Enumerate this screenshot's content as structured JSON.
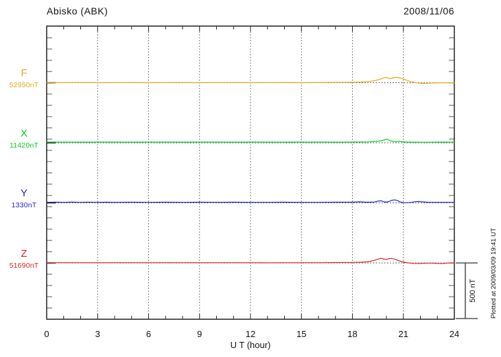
{
  "header": {
    "title": "Abisko (ABK)",
    "date": "2008/11/06"
  },
  "axis": {
    "xlabel": "U T (hour)",
    "x_ticks": [
      0,
      3,
      6,
      9,
      12,
      15,
      18,
      21,
      24
    ]
  },
  "scalebar": {
    "label": "500 nT",
    "value_nT": 500
  },
  "footer": {
    "plotted_at": "Plotted at 2009/03/09 19:41 UT"
  },
  "chart_data": {
    "type": "line",
    "title": "Abisko (ABK)",
    "date": "2008/11/06",
    "xlabel": "U T (hour)",
    "x_range": [
      0,
      24
    ],
    "x_ticks": [
      0,
      3,
      6,
      9,
      12,
      15,
      18,
      21,
      24
    ],
    "grid": "vertical dotted lines every 3 hours; dotted zero baseline per trace; minor ticks every hour (x) and every 100 nT (y)",
    "legend_position": "left margin, one colored label per trace",
    "scale_bar_nT": 500,
    "y_units": "nT deviation from baseline value",
    "plotted_at": "Plotted at 2009/03/09 19:41 UT",
    "series": [
      {
        "name": "F",
        "baseline_label": "52950nT",
        "baseline_nT": 52950,
        "color": "#E9A511",
        "points": [
          [
            0,
            1
          ],
          [
            1,
            1
          ],
          [
            2,
            2
          ],
          [
            3,
            1
          ],
          [
            4,
            1
          ],
          [
            5,
            2
          ],
          [
            6,
            1
          ],
          [
            7,
            1
          ],
          [
            8,
            2
          ],
          [
            9,
            1
          ],
          [
            10,
            1
          ],
          [
            11,
            2
          ],
          [
            12,
            1
          ],
          [
            13,
            1
          ],
          [
            14,
            2
          ],
          [
            15,
            1
          ],
          [
            16,
            2
          ],
          [
            17,
            3
          ],
          [
            18,
            4
          ],
          [
            18.5,
            6
          ],
          [
            19,
            11
          ],
          [
            19.3,
            18
          ],
          [
            19.6,
            30
          ],
          [
            19.8,
            40
          ],
          [
            19.95,
            48
          ],
          [
            20.1,
            40
          ],
          [
            20.25,
            37
          ],
          [
            20.45,
            46
          ],
          [
            20.6,
            48
          ],
          [
            20.8,
            43
          ],
          [
            21,
            34
          ],
          [
            21.2,
            22
          ],
          [
            21.4,
            11
          ],
          [
            21.6,
            4
          ],
          [
            21.8,
            -2
          ],
          [
            22.1,
            -6
          ],
          [
            22.4,
            -5
          ],
          [
            22.7,
            -2
          ],
          [
            23,
            -1
          ],
          [
            23.5,
            0
          ],
          [
            24,
            0
          ]
        ]
      },
      {
        "name": "X",
        "baseline_label": "11420nT",
        "baseline_nT": 11420,
        "color": "#00CC22",
        "points": [
          [
            0,
            6
          ],
          [
            1,
            6
          ],
          [
            2,
            6
          ],
          [
            3,
            6
          ],
          [
            4,
            6
          ],
          [
            5,
            6
          ],
          [
            6,
            6
          ],
          [
            7,
            6
          ],
          [
            8,
            6
          ],
          [
            9,
            6
          ],
          [
            10,
            6
          ],
          [
            11,
            6
          ],
          [
            12,
            6
          ],
          [
            13,
            6
          ],
          [
            14,
            6
          ],
          [
            15,
            6
          ],
          [
            16,
            6
          ],
          [
            17,
            6
          ],
          [
            18,
            7
          ],
          [
            18.5,
            7
          ],
          [
            19,
            8
          ],
          [
            19.4,
            12
          ],
          [
            19.7,
            18
          ],
          [
            19.9,
            27
          ],
          [
            20.05,
            31
          ],
          [
            20.2,
            20
          ],
          [
            20.4,
            12
          ],
          [
            20.6,
            10
          ],
          [
            20.75,
            14
          ],
          [
            20.9,
            9
          ],
          [
            21.2,
            7
          ],
          [
            21.5,
            6
          ],
          [
            22,
            5
          ],
          [
            22.5,
            5
          ],
          [
            23,
            6
          ],
          [
            23.5,
            6
          ],
          [
            24,
            6
          ]
        ]
      },
      {
        "name": "Y",
        "baseline_label": "1330nT",
        "baseline_nT": 1330,
        "color": "#2222CC",
        "points": [
          [
            0,
            5
          ],
          [
            0.5,
            6
          ],
          [
            1,
            5
          ],
          [
            1.5,
            7
          ],
          [
            2,
            5
          ],
          [
            2.5,
            6
          ],
          [
            3,
            5
          ],
          [
            3.5,
            6
          ],
          [
            4,
            5
          ],
          [
            5,
            6
          ],
          [
            6,
            5
          ],
          [
            7,
            6
          ],
          [
            8,
            5
          ],
          [
            9,
            6
          ],
          [
            10,
            5
          ],
          [
            11,
            6
          ],
          [
            12,
            5
          ],
          [
            13,
            5
          ],
          [
            14,
            6
          ],
          [
            15,
            5
          ],
          [
            16,
            5
          ],
          [
            17,
            6
          ],
          [
            18,
            6
          ],
          [
            18.4,
            9
          ],
          [
            18.7,
            7
          ],
          [
            19,
            6
          ],
          [
            19.3,
            8
          ],
          [
            19.5,
            16
          ],
          [
            19.7,
            18
          ],
          [
            19.85,
            10
          ],
          [
            20,
            6
          ],
          [
            20.2,
            16
          ],
          [
            20.35,
            24
          ],
          [
            20.5,
            26
          ],
          [
            20.65,
            20
          ],
          [
            20.8,
            10
          ],
          [
            21,
            2
          ],
          [
            21.2,
            1
          ],
          [
            21.5,
            5
          ],
          [
            21.7,
            11
          ],
          [
            21.9,
            12
          ],
          [
            22.1,
            9
          ],
          [
            22.4,
            6
          ],
          [
            22.7,
            5
          ],
          [
            23,
            5
          ],
          [
            23.5,
            5
          ],
          [
            24,
            5
          ]
        ]
      },
      {
        "name": "Z",
        "baseline_label": "51690nT",
        "baseline_nT": 51690,
        "color": "#DD2222",
        "points": [
          [
            0,
            2
          ],
          [
            1,
            2
          ],
          [
            2,
            2
          ],
          [
            3,
            2
          ],
          [
            4,
            2
          ],
          [
            5,
            2
          ],
          [
            6,
            2
          ],
          [
            7,
            2
          ],
          [
            8,
            2
          ],
          [
            9,
            2
          ],
          [
            10,
            2
          ],
          [
            11,
            2
          ],
          [
            12,
            2
          ],
          [
            13,
            1
          ],
          [
            14,
            2
          ],
          [
            15,
            2
          ],
          [
            16,
            2
          ],
          [
            17,
            3
          ],
          [
            18,
            4
          ],
          [
            18.5,
            6
          ],
          [
            19,
            12
          ],
          [
            19.3,
            24
          ],
          [
            19.55,
            36
          ],
          [
            19.7,
            42
          ],
          [
            19.85,
            34
          ],
          [
            20,
            31
          ],
          [
            20.15,
            38
          ],
          [
            20.3,
            41
          ],
          [
            20.5,
            33
          ],
          [
            20.7,
            21
          ],
          [
            20.9,
            12
          ],
          [
            21.1,
            5
          ],
          [
            21.3,
            0
          ],
          [
            21.6,
            -4
          ],
          [
            22,
            -5
          ],
          [
            22.4,
            -2
          ],
          [
            22.7,
            -2
          ],
          [
            23,
            -4
          ],
          [
            23.3,
            -5
          ],
          [
            23.6,
            -1
          ],
          [
            24,
            0
          ]
        ]
      }
    ]
  }
}
